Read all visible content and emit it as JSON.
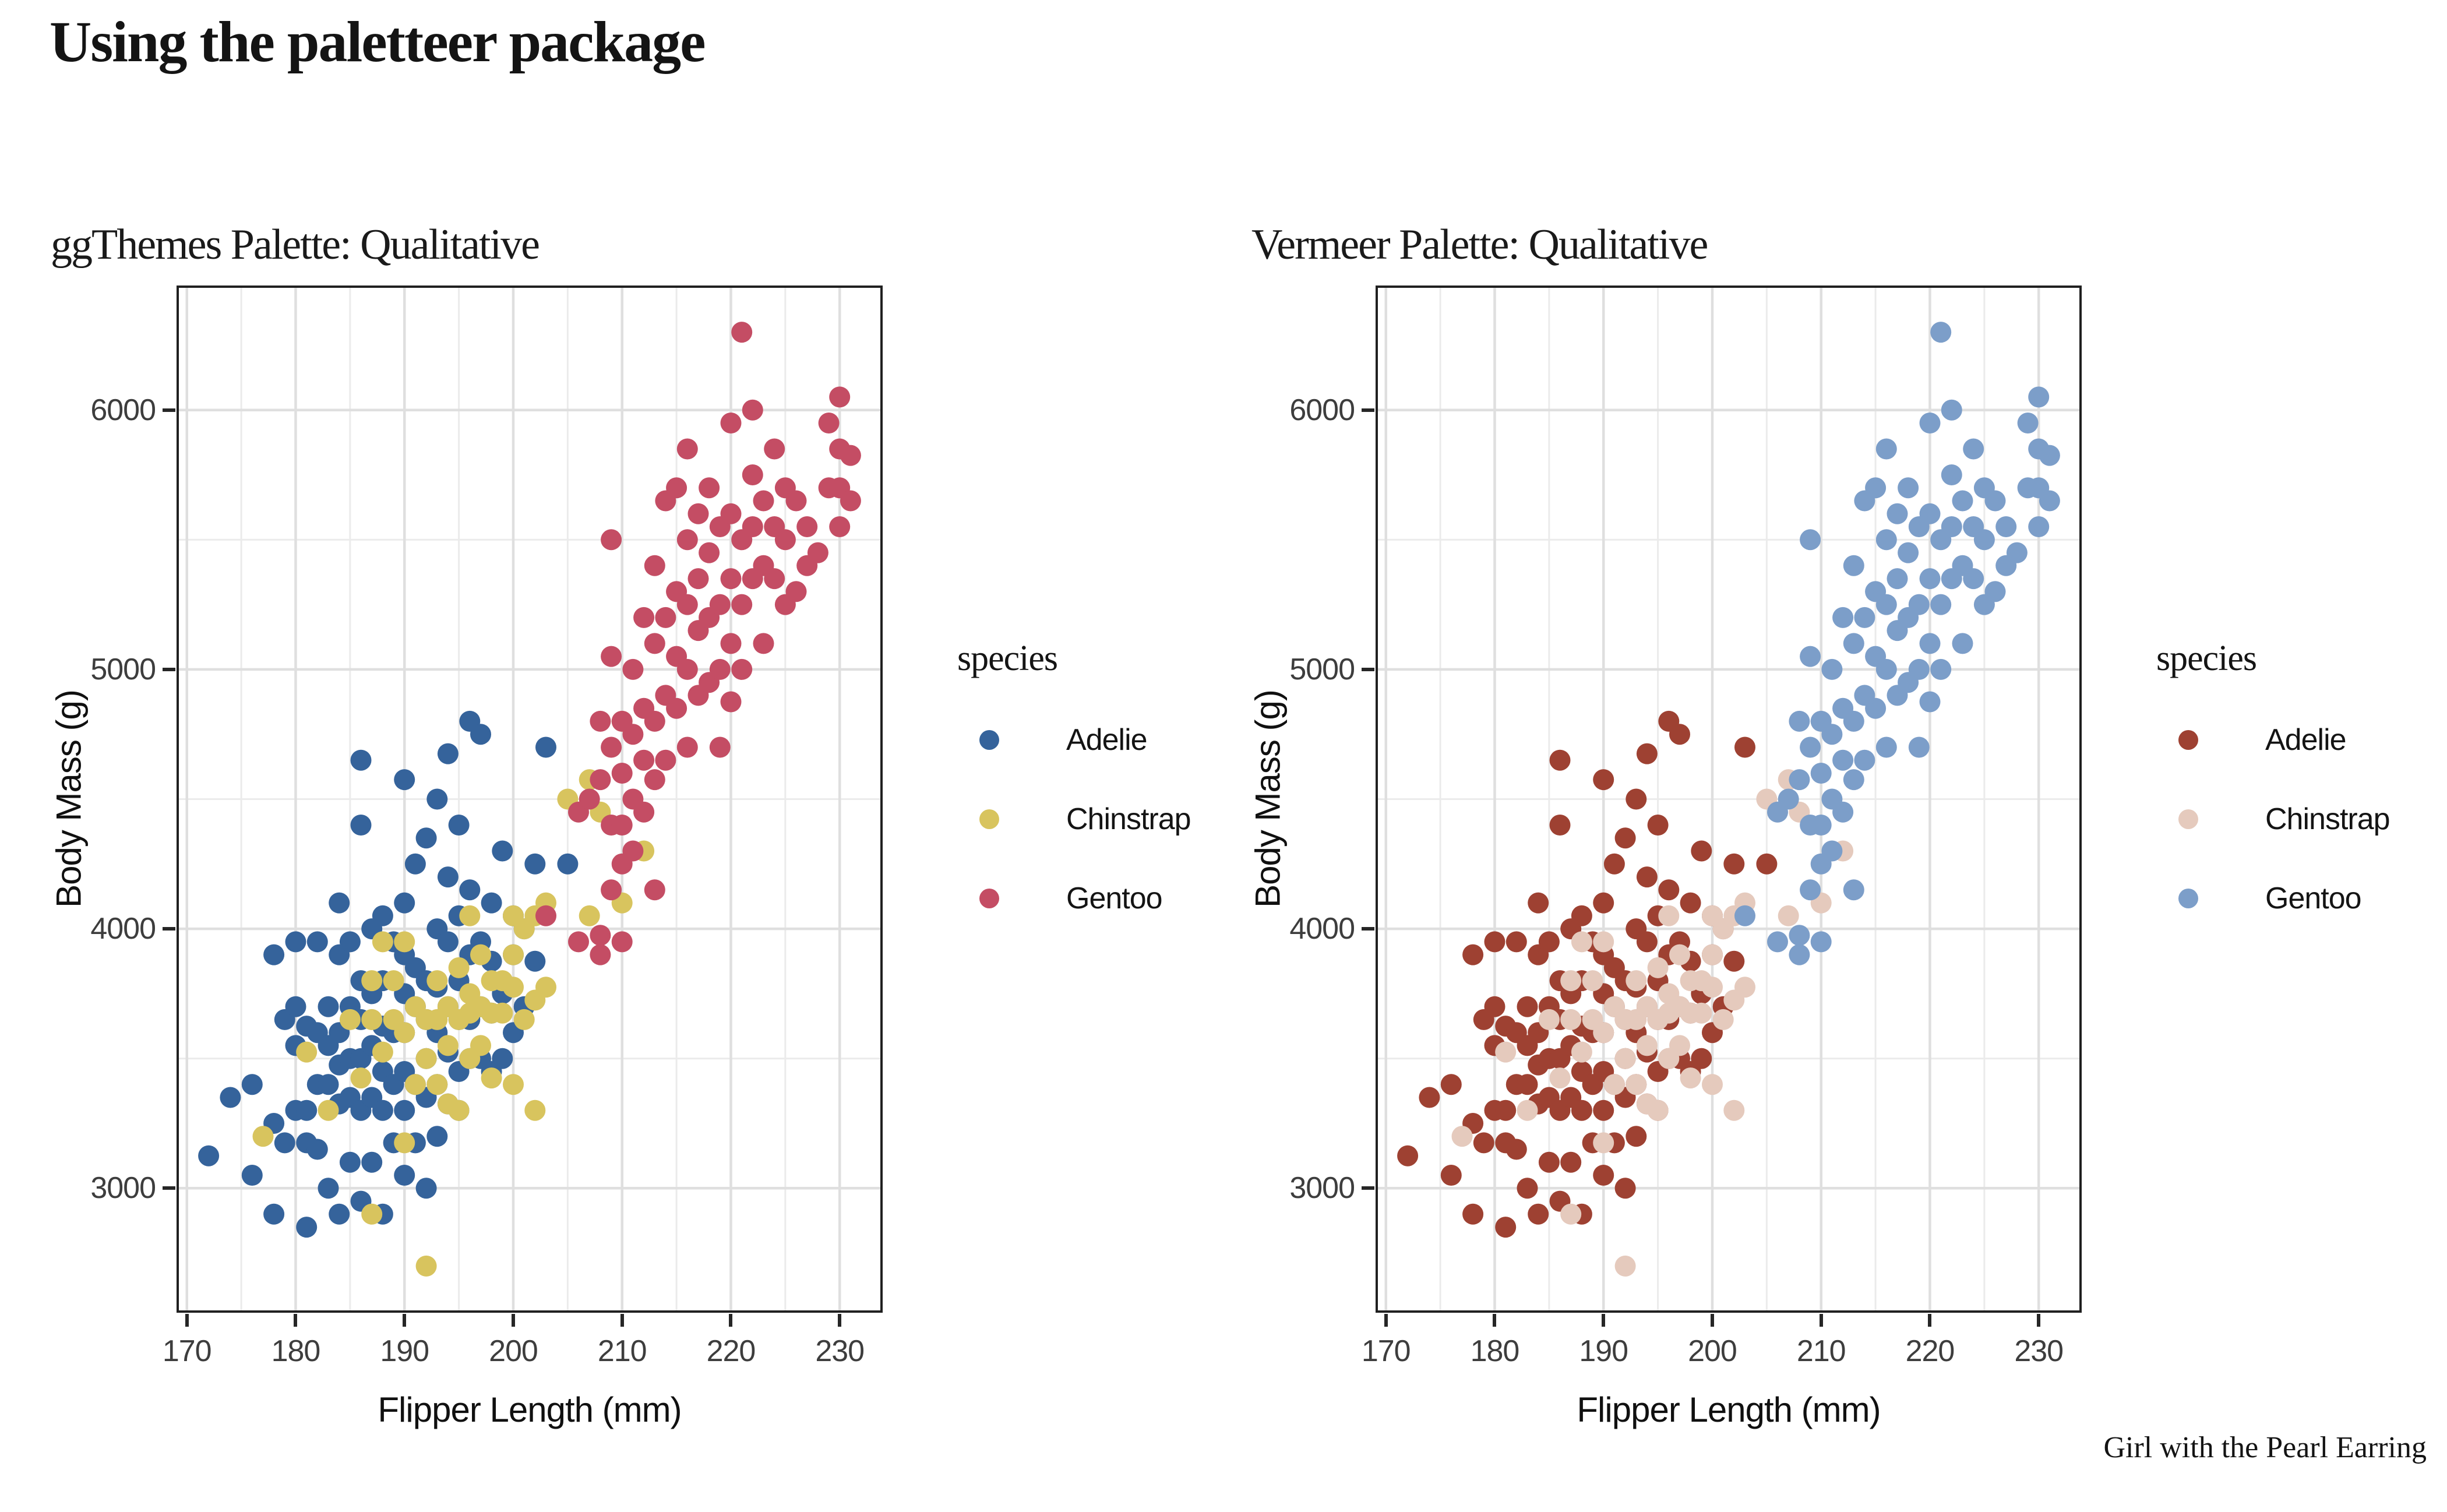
{
  "page": {
    "title": "Using the paletteer package",
    "caption": "Girl with the Pearl Earring",
    "background": "#ffffff"
  },
  "chart_data": {
    "type": "scatter",
    "title": "Using the paletteer package",
    "xlabel": "Flipper Length (mm)",
    "ylabel": "Body Mass (g)",
    "legend_title": "species",
    "legend_position": "right",
    "grid": "major+minor",
    "xlim": [
      169.05,
      233.95
    ],
    "ylim": [
      2520,
      6480
    ],
    "x_ticks": [
      170,
      180,
      190,
      200,
      210,
      220,
      230
    ],
    "y_ticks": [
      3000,
      4000,
      5000,
      6000
    ],
    "x_minor": [
      175,
      185,
      195,
      205,
      215,
      225
    ],
    "y_minor": [
      3500,
      4500,
      5500
    ],
    "species": [
      "Adelie",
      "Chinstrap",
      "Gentoo"
    ],
    "panels": [
      {
        "title": "ggThemes Palette: Qualitative",
        "palette": {
          "Adelie": "#35639B",
          "Chinstrap": "#D8C45E",
          "Gentoo": "#C44D64"
        }
      },
      {
        "title": "Vermeer Palette: Qualitative",
        "palette": {
          "Adelie": "#9E4132",
          "Chinstrap": "#E5CABD",
          "Gentoo": "#7C9EC9"
        }
      }
    ],
    "style": {
      "grid_major_color": "#DFDFDF",
      "grid_minor_color": "#EBEBEB",
      "panel_border_color": "#202020",
      "tick_color": "#262626",
      "tick_label_color": "#3d3d3d",
      "text_color": "#141414",
      "point_radius_px": 18
    },
    "points": {
      "Adelie": [
        [
          172,
          3125
        ],
        [
          174,
          3350
        ],
        [
          176,
          3400
        ],
        [
          176,
          3050
        ],
        [
          178,
          2900
        ],
        [
          178,
          3250
        ],
        [
          178,
          3900
        ],
        [
          179,
          3175
        ],
        [
          179,
          3650
        ],
        [
          180,
          3300
        ],
        [
          180,
          3550
        ],
        [
          180,
          3700
        ],
        [
          180,
          3950
        ],
        [
          181,
          2850
        ],
        [
          181,
          3175
        ],
        [
          181,
          3300
        ],
        [
          181,
          3625
        ],
        [
          182,
          3150
        ],
        [
          182,
          3400
        ],
        [
          182,
          3600
        ],
        [
          182,
          3950
        ],
        [
          183,
          3000
        ],
        [
          183,
          3400
        ],
        [
          183,
          3550
        ],
        [
          183,
          3700
        ],
        [
          184,
          2900
        ],
        [
          184,
          3325
        ],
        [
          184,
          3475
        ],
        [
          184,
          3600
        ],
        [
          184,
          3900
        ],
        [
          184,
          4100
        ],
        [
          185,
          3100
        ],
        [
          185,
          3350
        ],
        [
          185,
          3500
        ],
        [
          185,
          3700
        ],
        [
          185,
          3950
        ],
        [
          186,
          2950
        ],
        [
          186,
          3300
        ],
        [
          186,
          3500
        ],
        [
          186,
          3650
        ],
        [
          186,
          3800
        ],
        [
          186,
          4400
        ],
        [
          186,
          4650
        ],
        [
          187,
          3100
        ],
        [
          187,
          3350
        ],
        [
          187,
          3550
        ],
        [
          187,
          3750
        ],
        [
          187,
          4000
        ],
        [
          188,
          2900
        ],
        [
          188,
          3300
        ],
        [
          188,
          3450
        ],
        [
          188,
          3625
        ],
        [
          188,
          3800
        ],
        [
          188,
          4050
        ],
        [
          189,
          3175
        ],
        [
          189,
          3400
        ],
        [
          189,
          3600
        ],
        [
          189,
          3950
        ],
        [
          190,
          3050
        ],
        [
          190,
          3300
        ],
        [
          190,
          3450
        ],
        [
          190,
          3600
        ],
        [
          190,
          3750
        ],
        [
          190,
          3900
        ],
        [
          190,
          4100
        ],
        [
          190,
          4575
        ],
        [
          191,
          3175
        ],
        [
          191,
          3400
        ],
        [
          191,
          3700
        ],
        [
          191,
          3850
        ],
        [
          191,
          4250
        ],
        [
          192,
          3000
        ],
        [
          192,
          3350
        ],
        [
          192,
          3500
        ],
        [
          192,
          3650
        ],
        [
          192,
          3800
        ],
        [
          192,
          4350
        ],
        [
          193,
          3200
        ],
        [
          193,
          3400
        ],
        [
          193,
          3600
        ],
        [
          193,
          3775
        ],
        [
          193,
          4000
        ],
        [
          193,
          4500
        ],
        [
          194,
          3325
        ],
        [
          194,
          3525
        ],
        [
          194,
          3700
        ],
        [
          194,
          3950
        ],
        [
          194,
          4200
        ],
        [
          194,
          4675
        ],
        [
          195,
          3300
        ],
        [
          195,
          3450
        ],
        [
          195,
          3650
        ],
        [
          195,
          3800
        ],
        [
          195,
          4050
        ],
        [
          195,
          4400
        ],
        [
          196,
          3500
        ],
        [
          196,
          3650
        ],
        [
          196,
          3900
        ],
        [
          196,
          4150
        ],
        [
          196,
          4800
        ],
        [
          197,
          3500
        ],
        [
          197,
          3700
        ],
        [
          197,
          3950
        ],
        [
          197,
          4750
        ],
        [
          198,
          3450
        ],
        [
          198,
          3675
        ],
        [
          198,
          3875
        ],
        [
          198,
          4100
        ],
        [
          199,
          3500
        ],
        [
          199,
          3750
        ],
        [
          199,
          4300
        ],
        [
          200,
          3600
        ],
        [
          200,
          3900
        ],
        [
          200,
          4050
        ],
        [
          201,
          3700
        ],
        [
          201,
          4000
        ],
        [
          202,
          3875
        ],
        [
          202,
          4250
        ],
        [
          203,
          4700
        ],
        [
          205,
          4250
        ]
      ],
      "Chinstrap": [
        [
          177,
          3200
        ],
        [
          181,
          3525
        ],
        [
          183,
          3300
        ],
        [
          185,
          3650
        ],
        [
          186,
          3425
        ],
        [
          187,
          2900
        ],
        [
          187,
          3650
        ],
        [
          187,
          3800
        ],
        [
          188,
          3525
        ],
        [
          188,
          3950
        ],
        [
          189,
          3650
        ],
        [
          189,
          3800
        ],
        [
          190,
          3175
        ],
        [
          190,
          3600
        ],
        [
          190,
          3950
        ],
        [
          191,
          3400
        ],
        [
          191,
          3700
        ],
        [
          192,
          2700
        ],
        [
          192,
          3500
        ],
        [
          192,
          3650
        ],
        [
          193,
          3400
        ],
        [
          193,
          3650
        ],
        [
          193,
          3800
        ],
        [
          194,
          3325
        ],
        [
          194,
          3550
        ],
        [
          194,
          3700
        ],
        [
          195,
          3300
        ],
        [
          195,
          3650
        ],
        [
          195,
          3850
        ],
        [
          196,
          3500
        ],
        [
          196,
          3675
        ],
        [
          196,
          3750
        ],
        [
          196,
          4050
        ],
        [
          197,
          3550
        ],
        [
          197,
          3700
        ],
        [
          197,
          3900
        ],
        [
          198,
          3425
        ],
        [
          198,
          3675
        ],
        [
          198,
          3800
        ],
        [
          199,
          3675
        ],
        [
          199,
          3800
        ],
        [
          200,
          3400
        ],
        [
          200,
          3775
        ],
        [
          200,
          3900
        ],
        [
          200,
          4050
        ],
        [
          201,
          3650
        ],
        [
          201,
          4000
        ],
        [
          202,
          3300
        ],
        [
          202,
          3725
        ],
        [
          202,
          4050
        ],
        [
          203,
          3775
        ],
        [
          203,
          4100
        ],
        [
          205,
          4500
        ],
        [
          207,
          4050
        ],
        [
          207,
          4575
        ],
        [
          208,
          4450
        ],
        [
          210,
          4100
        ],
        [
          210,
          4800
        ],
        [
          212,
          4300
        ]
      ],
      "Gentoo": [
        [
          203,
          4050
        ],
        [
          206,
          3950
        ],
        [
          208,
          3900
        ],
        [
          208,
          3975
        ],
        [
          210,
          3950
        ],
        [
          209,
          4150
        ],
        [
          210,
          4250
        ],
        [
          211,
          4300
        ],
        [
          213,
          4150
        ],
        [
          206,
          4450
        ],
        [
          207,
          4500
        ],
        [
          208,
          4575
        ],
        [
          208,
          4800
        ],
        [
          209,
          4400
        ],
        [
          209,
          4700
        ],
        [
          209,
          5050
        ],
        [
          209,
          5500
        ],
        [
          210,
          4400
        ],
        [
          210,
          4600
        ],
        [
          210,
          4800
        ],
        [
          211,
          4500
        ],
        [
          211,
          4750
        ],
        [
          211,
          5000
        ],
        [
          212,
          4450
        ],
        [
          212,
          4650
        ],
        [
          212,
          4850
        ],
        [
          212,
          5200
        ],
        [
          213,
          4575
        ],
        [
          213,
          4800
        ],
        [
          213,
          5100
        ],
        [
          213,
          5400
        ],
        [
          214,
          4650
        ],
        [
          214,
          4900
        ],
        [
          214,
          5200
        ],
        [
          214,
          5650
        ],
        [
          215,
          4850
        ],
        [
          215,
          5050
        ],
        [
          215,
          5300
        ],
        [
          215,
          5700
        ],
        [
          216,
          4700
        ],
        [
          216,
          5000
        ],
        [
          216,
          5250
        ],
        [
          216,
          5500
        ],
        [
          216,
          5850
        ],
        [
          217,
          4900
        ],
        [
          217,
          5150
        ],
        [
          217,
          5350
        ],
        [
          217,
          5600
        ],
        [
          218,
          4950
        ],
        [
          218,
          5200
        ],
        [
          218,
          5450
        ],
        [
          218,
          5700
        ],
        [
          219,
          4700
        ],
        [
          219,
          5000
        ],
        [
          219,
          5250
        ],
        [
          219,
          5550
        ],
        [
          220,
          4875
        ],
        [
          220,
          5100
        ],
        [
          220,
          5350
        ],
        [
          220,
          5600
        ],
        [
          220,
          5950
        ],
        [
          221,
          5000
        ],
        [
          221,
          5250
        ],
        [
          221,
          5500
        ],
        [
          221,
          6300
        ],
        [
          222,
          5350
        ],
        [
          222,
          5550
        ],
        [
          222,
          5750
        ],
        [
          222,
          6000
        ],
        [
          223,
          5100
        ],
        [
          223,
          5400
        ],
        [
          223,
          5650
        ],
        [
          224,
          5350
        ],
        [
          224,
          5550
        ],
        [
          224,
          5850
        ],
        [
          225,
          5250
        ],
        [
          225,
          5500
        ],
        [
          225,
          5700
        ],
        [
          226,
          5300
        ],
        [
          226,
          5650
        ],
        [
          227,
          5400
        ],
        [
          227,
          5550
        ],
        [
          228,
          5450
        ],
        [
          229,
          5700
        ],
        [
          229,
          5950
        ],
        [
          230,
          5550
        ],
        [
          230,
          5700
        ],
        [
          230,
          5850
        ],
        [
          230,
          6050
        ],
        [
          231,
          5650
        ],
        [
          231,
          5825
        ]
      ]
    }
  }
}
